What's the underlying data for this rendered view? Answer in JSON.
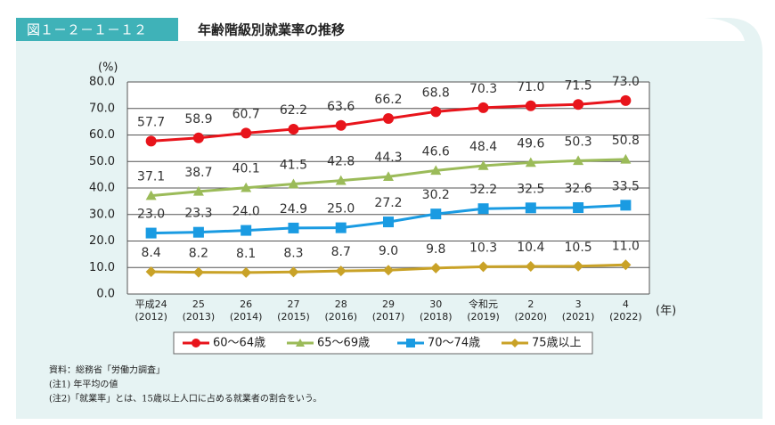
{
  "chart_data": {
    "type": "line",
    "figure_label": "図１－２－１－１２",
    "title": "年齢階級別就業率の推移",
    "y_unit": "(%)",
    "x_unit": "(年)",
    "categories": [
      "平成24",
      "25",
      "26",
      "27",
      "28",
      "29",
      "30",
      "令和元",
      "2",
      "3",
      "4"
    ],
    "category_sublabels": [
      "(2012)",
      "(2013)",
      "(2014)",
      "(2015)",
      "(2016)",
      "(2017)",
      "(2018)",
      "(2019)",
      "(2020)",
      "(2021)",
      "(2022)"
    ],
    "ylim": [
      0,
      80
    ],
    "yticks": [
      {
        "value": 0,
        "label": "0.0"
      },
      {
        "value": 10,
        "label": "10.0"
      },
      {
        "value": 20,
        "label": "20.0"
      },
      {
        "value": 30,
        "label": "30.0"
      },
      {
        "value": 40,
        "label": "40.0"
      },
      {
        "value": 50,
        "label": "50.0"
      },
      {
        "value": 60,
        "label": "60.0"
      },
      {
        "value": 70,
        "label": "70.0"
      },
      {
        "value": 80,
        "label": "80.0"
      }
    ],
    "grid": true,
    "series": [
      {
        "name": "60～64歳",
        "color": "#e8141b",
        "marker": "circle",
        "values": [
          57.7,
          58.9,
          60.7,
          62.2,
          63.6,
          66.2,
          68.8,
          70.3,
          71.0,
          71.5,
          73.0
        ],
        "value_labels": [
          "57.7",
          "58.9",
          "60.7",
          "62.2",
          "63.6",
          "66.2",
          "68.8",
          "70.3",
          "71.0",
          "71.5",
          "73.0"
        ]
      },
      {
        "name": "65～69歳",
        "color": "#9bbb59",
        "marker": "triangle",
        "values": [
          37.1,
          38.7,
          40.1,
          41.5,
          42.8,
          44.3,
          46.6,
          48.4,
          49.6,
          50.3,
          50.8
        ],
        "value_labels": [
          "37.1",
          "38.7",
          "40.1",
          "41.5",
          "42.8",
          "44.3",
          "46.6",
          "48.4",
          "49.6",
          "50.3",
          "50.8"
        ]
      },
      {
        "name": "70～74歳",
        "color": "#1a9be2",
        "marker": "square",
        "values": [
          23.0,
          23.3,
          24.0,
          24.9,
          25.0,
          27.2,
          30.2,
          32.2,
          32.5,
          32.6,
          33.5
        ],
        "value_labels": [
          "23.0",
          "23.3",
          "24.0",
          "24.9",
          "25.0",
          "27.2",
          "30.2",
          "32.2",
          "32.5",
          "32.6",
          "33.5"
        ]
      },
      {
        "name": "75歳以上",
        "color": "#c9a227",
        "marker": "diamond",
        "values": [
          8.4,
          8.2,
          8.1,
          8.3,
          8.7,
          9.0,
          9.8,
          10.3,
          10.4,
          10.5,
          11.0
        ],
        "value_labels": [
          "8.4",
          "8.2",
          "8.1",
          "8.3",
          "8.7",
          "9.0",
          "9.8",
          "10.3",
          "10.4",
          "10.5",
          "11.0"
        ]
      }
    ],
    "notes": [
      "資料：総務省「労働力調査」",
      "(注1) 年平均の値",
      "(注2)「就業率」とは、15歳以上人口に占める就業者の割合をいう。"
    ]
  }
}
